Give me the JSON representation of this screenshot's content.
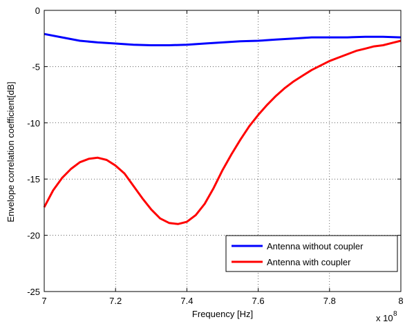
{
  "chart_data": {
    "type": "line",
    "title": "",
    "xlabel": "Frequency [Hz]",
    "ylabel": "Envelope correlation coefficient[dB]",
    "x_exponent_label": "x 10",
    "x_exponent_power": "8",
    "xlim": [
      7.0,
      8.0
    ],
    "ylim": [
      -25,
      0
    ],
    "xticks": [
      7.0,
      7.2,
      7.4,
      7.6,
      7.8,
      8.0
    ],
    "xtick_labels": [
      "7",
      "7.2",
      "7.4",
      "7.6",
      "7.8",
      "8"
    ],
    "yticks": [
      0,
      -5,
      -10,
      -15,
      -20,
      -25
    ],
    "ytick_labels": [
      "0",
      "-5",
      "-10",
      "-15",
      "-20",
      "-25"
    ],
    "grid": true,
    "legend_position": "bottom-right",
    "series": [
      {
        "name": "Antenna without coupler",
        "color": "#0000ff",
        "x": [
          7.0,
          7.05,
          7.1,
          7.15,
          7.2,
          7.25,
          7.3,
          7.35,
          7.4,
          7.45,
          7.5,
          7.55,
          7.6,
          7.65,
          7.7,
          7.75,
          7.8,
          7.85,
          7.9,
          7.95,
          8.0
        ],
        "y": [
          -2.1,
          -2.4,
          -2.7,
          -2.85,
          -2.95,
          -3.05,
          -3.1,
          -3.1,
          -3.05,
          -2.95,
          -2.85,
          -2.75,
          -2.7,
          -2.6,
          -2.5,
          -2.4,
          -2.4,
          -2.4,
          -2.35,
          -2.35,
          -2.4
        ]
      },
      {
        "name": "Antenna with coupler",
        "color": "#ff0000",
        "x": [
          7.0,
          7.025,
          7.05,
          7.075,
          7.1,
          7.125,
          7.15,
          7.175,
          7.2,
          7.225,
          7.25,
          7.275,
          7.3,
          7.325,
          7.35,
          7.375,
          7.4,
          7.425,
          7.45,
          7.475,
          7.5,
          7.525,
          7.55,
          7.575,
          7.6,
          7.625,
          7.65,
          7.675,
          7.7,
          7.725,
          7.75,
          7.775,
          7.8,
          7.825,
          7.85,
          7.875,
          7.9,
          7.925,
          7.95,
          7.975,
          8.0
        ],
        "y": [
          -17.5,
          -16.0,
          -14.9,
          -14.1,
          -13.5,
          -13.2,
          -13.1,
          -13.3,
          -13.8,
          -14.5,
          -15.6,
          -16.7,
          -17.7,
          -18.5,
          -18.9,
          -19.0,
          -18.8,
          -18.2,
          -17.2,
          -15.8,
          -14.2,
          -12.8,
          -11.5,
          -10.3,
          -9.3,
          -8.4,
          -7.6,
          -6.9,
          -6.3,
          -5.8,
          -5.3,
          -4.9,
          -4.5,
          -4.2,
          -3.9,
          -3.6,
          -3.4,
          -3.2,
          -3.1,
          -2.9,
          -2.7
        ]
      }
    ]
  }
}
